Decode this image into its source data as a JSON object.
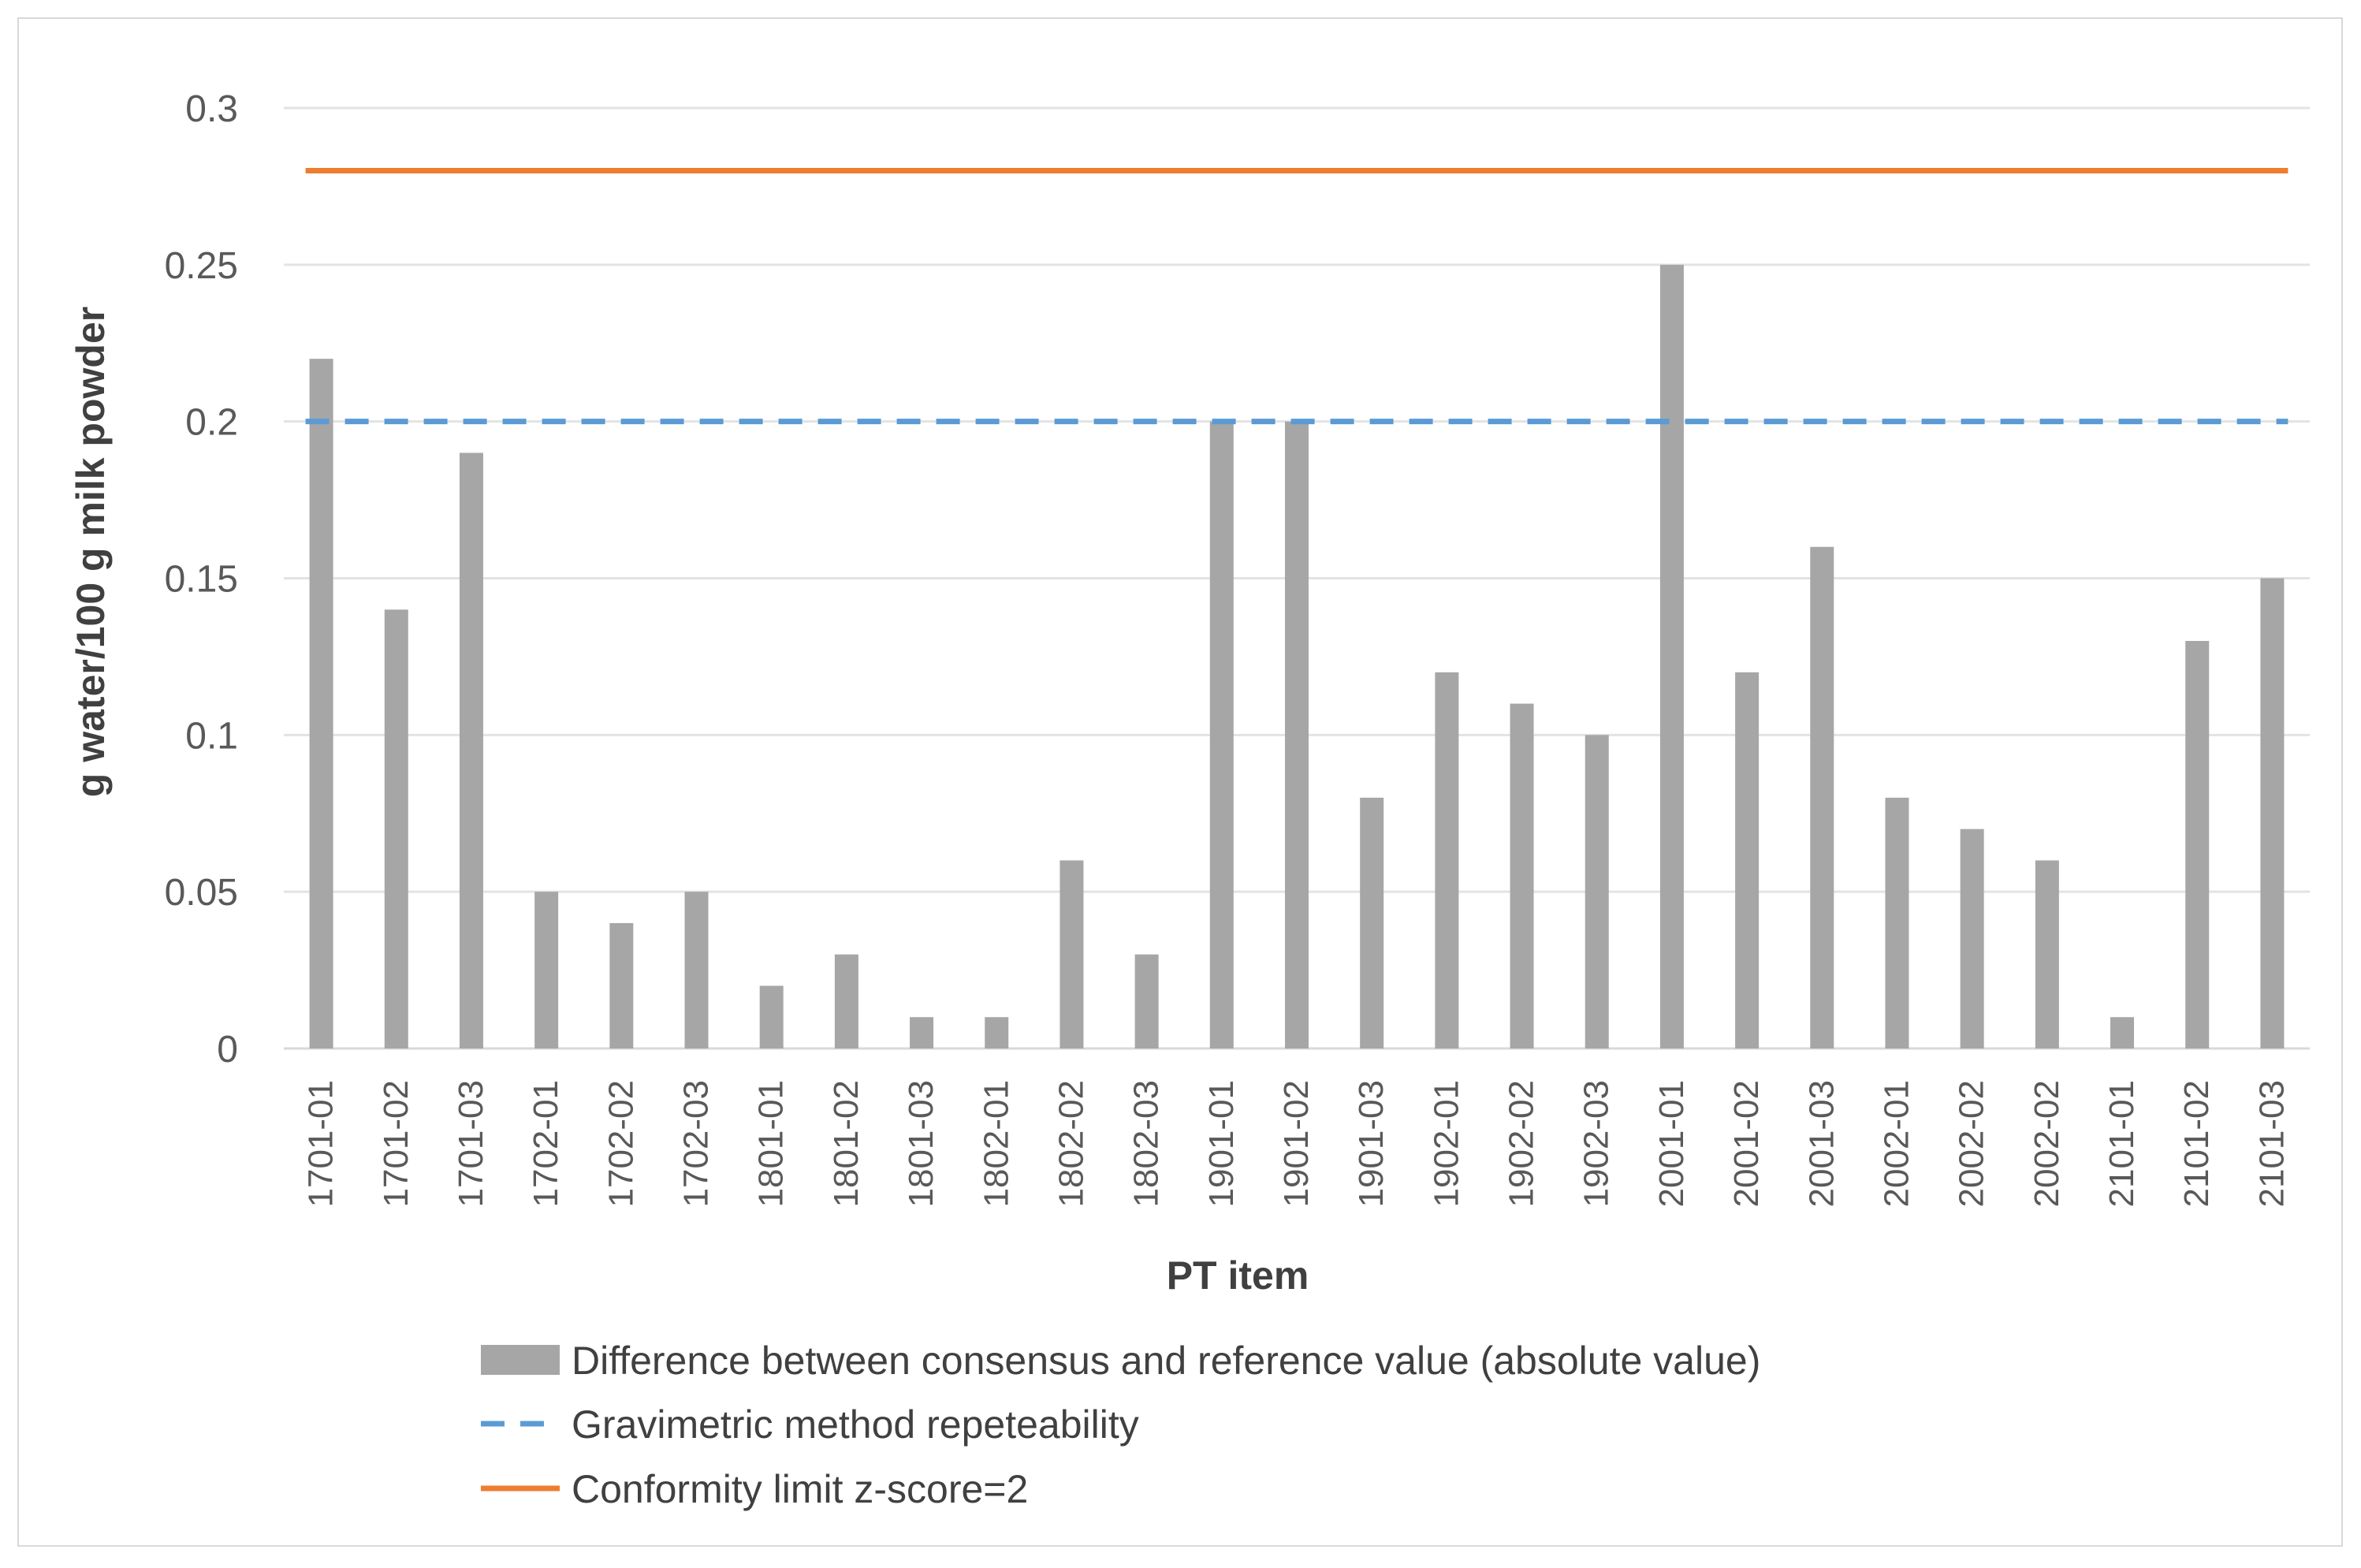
{
  "chart_data": {
    "type": "bar",
    "title": "",
    "xlabel": "PT item",
    "ylabel": "g water/100 g milk powder",
    "ylim": [
      0,
      0.3
    ],
    "yticks": [
      0,
      0.05,
      0.1,
      0.15,
      0.2,
      0.25,
      0.3
    ],
    "ytick_labels": [
      "0",
      "0.05",
      "0.1",
      "0.15",
      "0.2",
      "0.25",
      "0.3"
    ],
    "grid": true,
    "legend_position": "bottom",
    "categories": [
      "1701-01",
      "1701-02",
      "1701-03",
      "1702-01",
      "1702-02",
      "1702-03",
      "1801-01",
      "1801-02",
      "1801-03",
      "1802-01",
      "1802-02",
      "1802-03",
      "1901-01",
      "1901-02",
      "1901-03",
      "1902-01",
      "1902-02",
      "1902-03",
      "2001-01",
      "2001-02",
      "2001-03",
      "2002-01",
      "2002-02",
      "2002-02",
      "2101-01",
      "2101-02",
      "2101-03"
    ],
    "series": [
      {
        "name": "Difference between consensus and reference value (absolute value)",
        "type": "bar",
        "color": "#a6a6a6",
        "values": [
          0.22,
          0.14,
          0.19,
          0.05,
          0.04,
          0.05,
          0.02,
          0.03,
          0.01,
          0.01,
          0.06,
          0.03,
          0.2,
          0.2,
          0.08,
          0.12,
          0.11,
          0.1,
          0.25,
          0.12,
          0.16,
          0.08,
          0.07,
          0.06,
          0.01,
          0.13,
          0.15
        ]
      },
      {
        "name": "Gravimetric method repeteability",
        "type": "line",
        "style": "dashed",
        "color": "#5b9bd5",
        "value": 0.2
      },
      {
        "name": "Conformity limit z-score=2",
        "type": "line",
        "style": "solid",
        "color": "#ed7d31",
        "value": 0.28
      }
    ]
  }
}
